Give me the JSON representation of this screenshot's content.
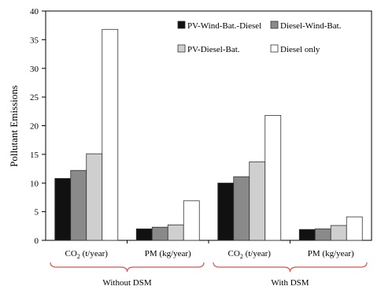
{
  "chart_data": {
    "type": "bar",
    "ylabel": "Pollutant  Emissions",
    "ylim": [
      0,
      40
    ],
    "yticks": [
      0,
      5,
      10,
      15,
      20,
      25,
      30,
      35,
      40
    ],
    "grid": false,
    "legend_position": "top-right",
    "categories": [
      {
        "label_main": "CO",
        "label_sub": "2",
        "label_rest": " (t/year)",
        "group": "Without DSM"
      },
      {
        "label_main": "PM (kg/year)",
        "label_sub": "",
        "label_rest": "",
        "group": "Without DSM"
      },
      {
        "label_main": "CO",
        "label_sub": "2",
        "label_rest": " (t/year)",
        "group": "With DSM"
      },
      {
        "label_main": "PM (kg/year)",
        "label_sub": "",
        "label_rest": "",
        "group": "With DSM"
      }
    ],
    "groups": [
      "Without DSM",
      "With DSM"
    ],
    "series": [
      {
        "name": "PV-Wind-Bat.-Diesel",
        "color": "#111111",
        "values": [
          10.8,
          2.0,
          10.0,
          1.9
        ]
      },
      {
        "name": "Diesel-Wind-Bat.",
        "color": "#8a8a8a",
        "values": [
          12.2,
          2.3,
          11.1,
          2.0
        ]
      },
      {
        "name": "PV-Diesel-Bat.",
        "color": "#cfcfcf",
        "values": [
          15.1,
          2.7,
          13.7,
          2.6
        ]
      },
      {
        "name": "Diesel only",
        "color": "#ffffff",
        "values": [
          36.8,
          6.9,
          21.8,
          4.1
        ]
      }
    ],
    "brace_color": "#d9534f"
  }
}
